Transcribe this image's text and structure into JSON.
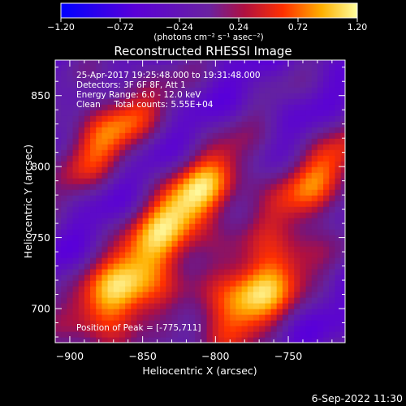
{
  "chart_data": {
    "type": "heatmap",
    "title": "Reconstructed RHESSI Image",
    "xlabel": "Heliocentric X (arcsec)",
    "ylabel": "Heliocentric Y (arcsec)",
    "xlim": [
      -910,
      -711
    ],
    "ylim": [
      676,
      875
    ],
    "x_ticks": [
      -900,
      -850,
      -800,
      -750
    ],
    "y_ticks": [
      700,
      750,
      800,
      850
    ],
    "x_tick_labels": [
      "−900",
      "−850",
      "−800",
      "−750"
    ],
    "y_tick_labels": [
      "700",
      "750",
      "800",
      "850"
    ],
    "colorbar": {
      "range": [
        -1.2,
        1.2
      ],
      "ticks": [
        -1.2,
        -0.72,
        -0.24,
        0.24,
        0.72,
        1.2
      ],
      "tick_labels": [
        "−1.20",
        "−0.72",
        "−0.24",
        "0.24",
        "0.72",
        "1.20"
      ],
      "unit_label": "(photons cm⁻² s⁻¹ asec⁻²)"
    },
    "annotations": [
      "25-Apr-2017 19:25:48.000 to 19:31:48.000",
      "Detectors: 3F 6F 8F, Att 1",
      "Energy Range: 6.0 - 12.0 keV",
      "Clean     Total counts: 5.55E+04"
    ],
    "peak_label": "Position of Peak = [-775,711]",
    "peak": [
      -775,
      711
    ],
    "sources": [
      {
        "x": -775,
        "y": 711,
        "value": 1.2
      },
      {
        "x": -863,
        "y": 712,
        "value": 1.15
      },
      {
        "x": -815,
        "y": 775,
        "value": 1.05
      },
      {
        "x": -875,
        "y": 825,
        "value": 0.7
      },
      {
        "x": -728,
        "y": 790,
        "value": 0.62
      }
    ]
  },
  "footer_date": "6-Sep-2022 11:30"
}
